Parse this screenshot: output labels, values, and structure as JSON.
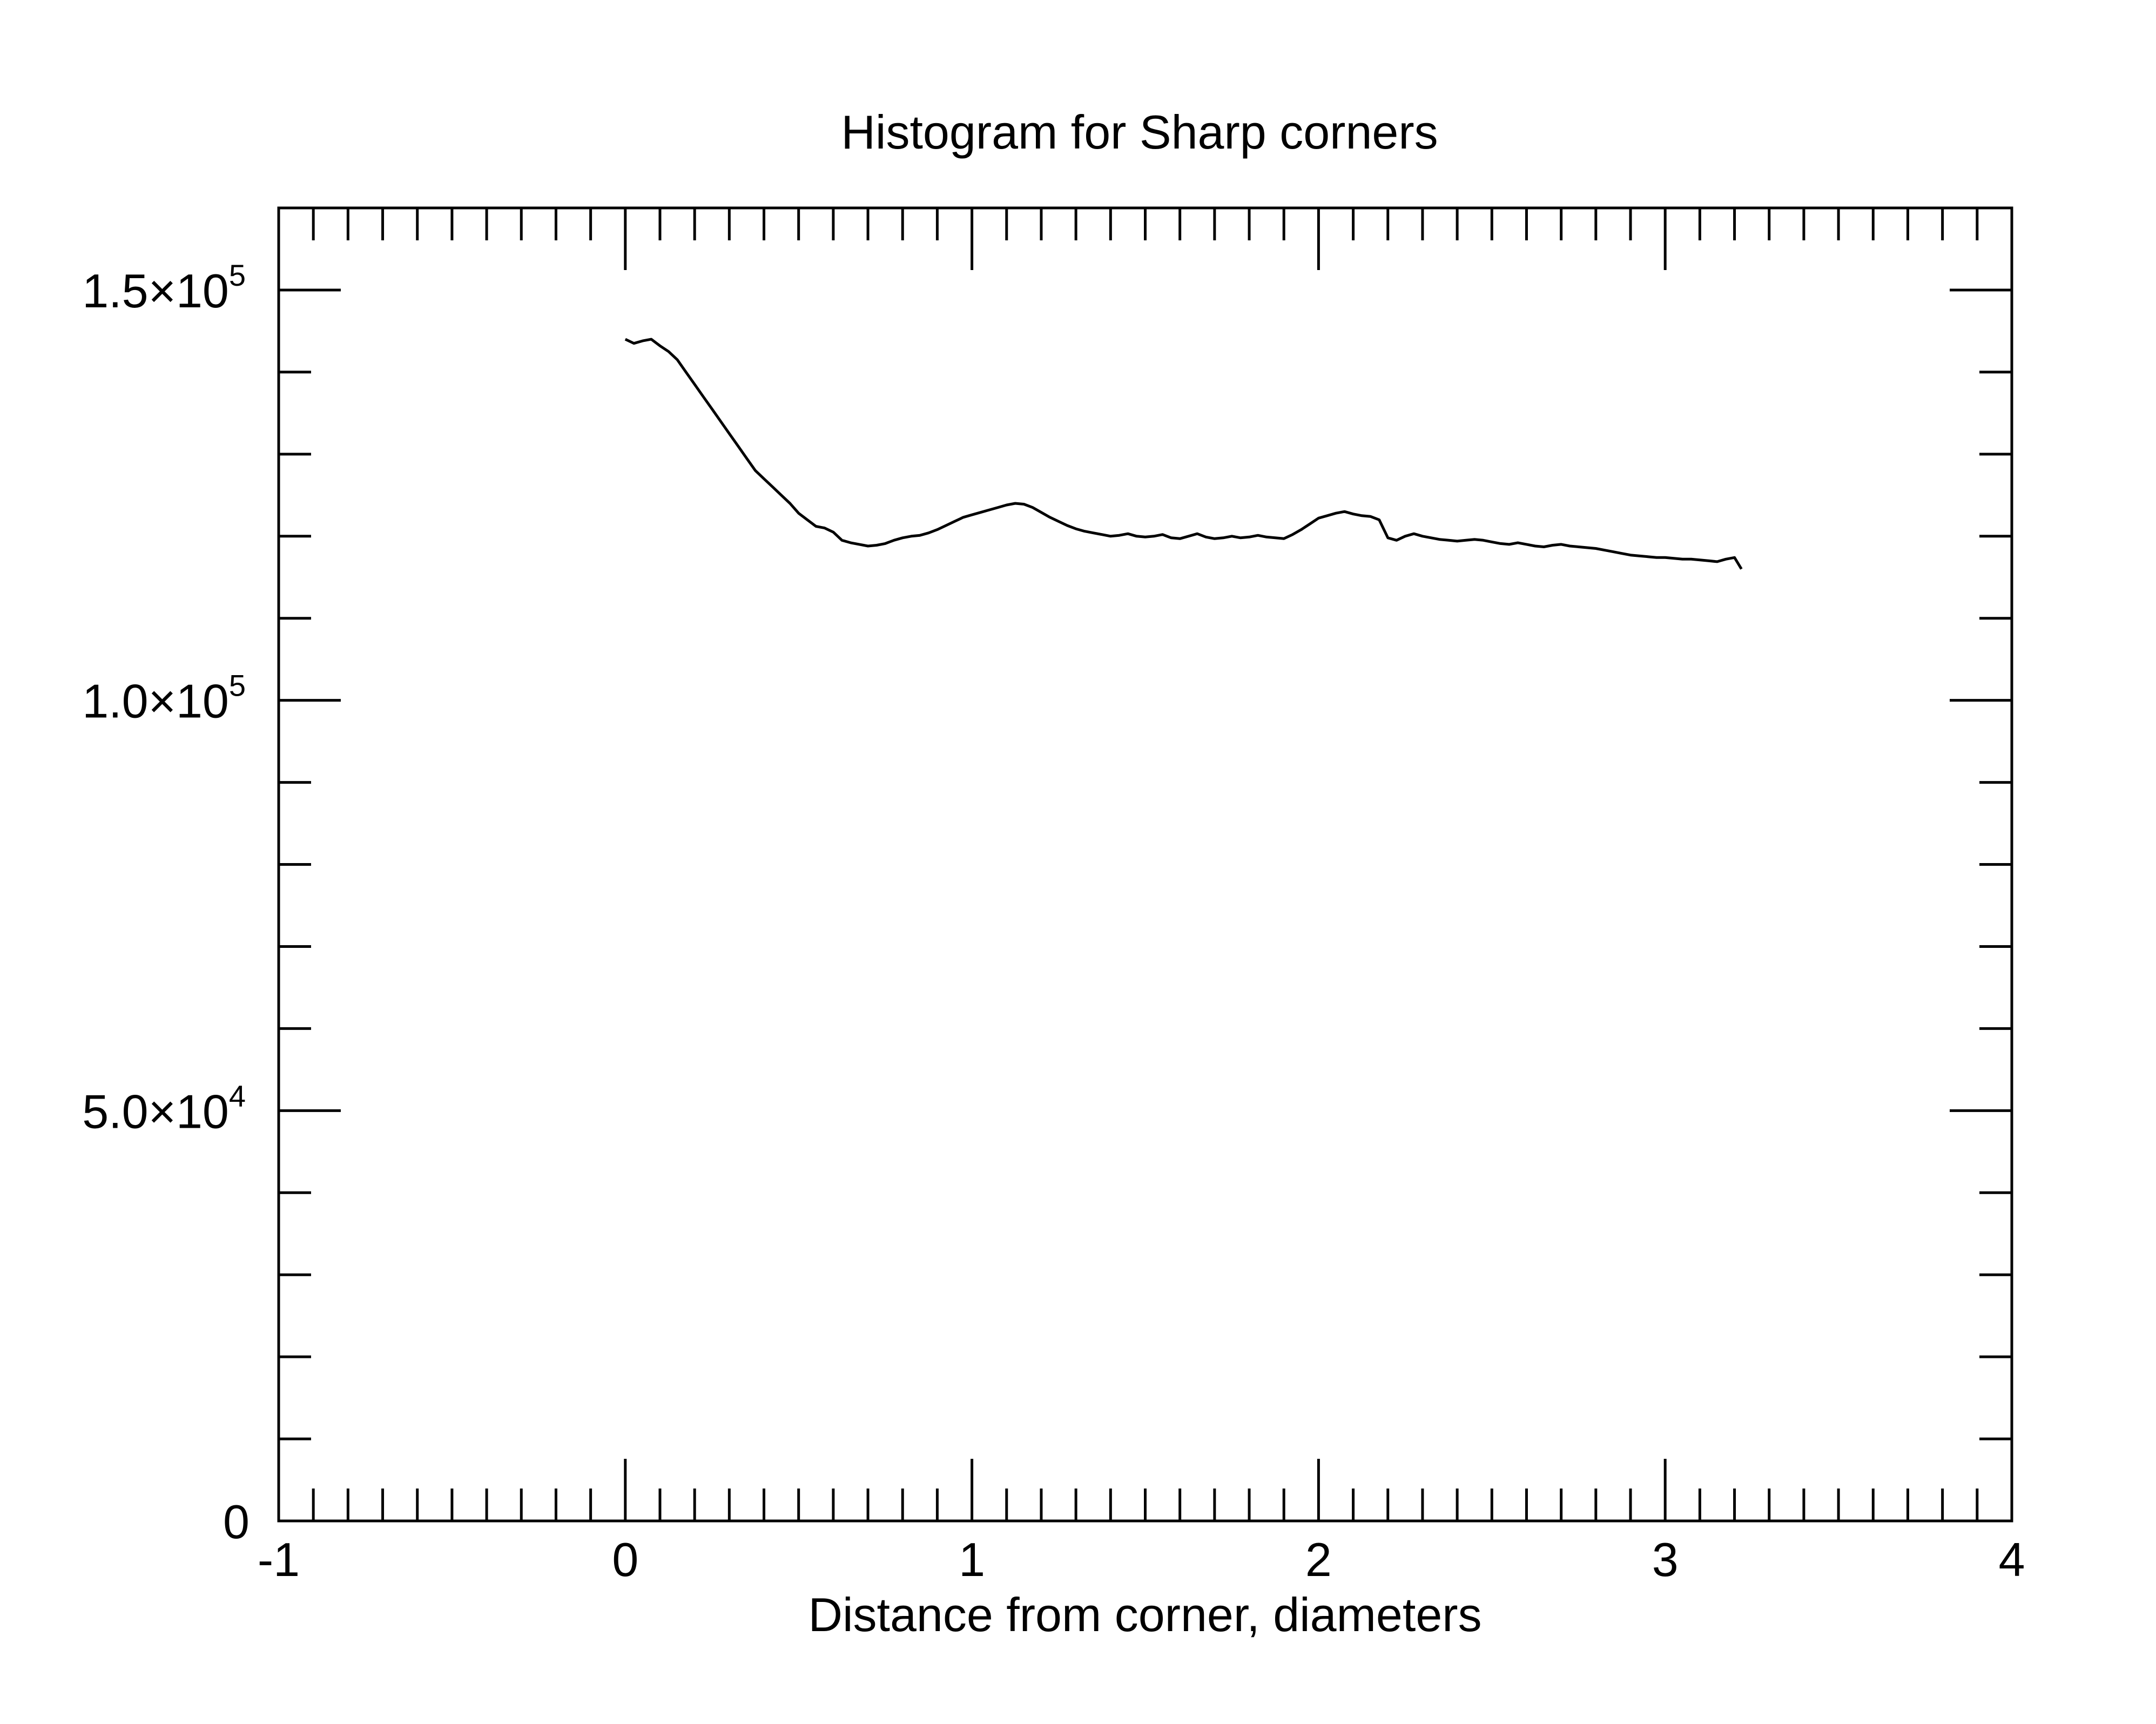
{
  "chart_data": {
    "type": "line",
    "title": "Histogram for Sharp corners",
    "xlabel": "Distance from corner, diameters",
    "ylabel": "",
    "xlim": [
      -1,
      4
    ],
    "ylim": [
      0,
      160000
    ],
    "x_major_ticks": [
      -1,
      0,
      1,
      2,
      3,
      4
    ],
    "x_tick_labels": [
      "-1",
      "0",
      "1",
      "2",
      "3",
      "4"
    ],
    "x_minor_step": 0.1,
    "y_major_ticks": [
      {
        "value": 0,
        "mantissa": "0",
        "exponent": ""
      },
      {
        "value": 50000,
        "mantissa": "5.0×10",
        "exponent": "4"
      },
      {
        "value": 100000,
        "mantissa": "1.0×10",
        "exponent": "5"
      },
      {
        "value": 150000,
        "mantissa": "1.5×10",
        "exponent": "5"
      }
    ],
    "y_minor_step": 10000,
    "grid": false,
    "legend": "none",
    "line_color": "#000000",
    "series": [
      {
        "x": [
          0,
          0.025,
          0.05,
          0.075,
          0.1,
          0.125,
          0.15,
          0.175,
          0.2,
          0.225,
          0.25,
          0.275,
          0.3,
          0.325,
          0.35,
          0.375,
          0.4,
          0.425,
          0.45,
          0.475,
          0.5,
          0.525,
          0.55,
          0.575,
          0.6,
          0.625,
          0.65,
          0.675,
          0.7,
          0.725,
          0.75,
          0.775,
          0.8,
          0.825,
          0.85,
          0.875,
          0.9,
          0.925,
          0.95,
          0.975,
          1.0,
          1.025,
          1.05,
          1.075,
          1.1,
          1.125,
          1.15,
          1.175,
          1.2,
          1.225,
          1.25,
          1.275,
          1.3,
          1.325,
          1.35,
          1.375,
          1.4,
          1.425,
          1.45,
          1.475,
          1.5,
          1.525,
          1.55,
          1.575,
          1.6,
          1.625,
          1.65,
          1.675,
          1.7,
          1.725,
          1.75,
          1.775,
          1.8,
          1.825,
          1.85,
          1.875,
          1.9,
          1.925,
          1.95,
          1.975,
          2.0,
          2.025,
          2.05,
          2.075,
          2.1,
          2.125,
          2.15,
          2.175,
          2.2,
          2.225,
          2.25,
          2.275,
          2.3,
          2.325,
          2.35,
          2.375,
          2.4,
          2.425,
          2.45,
          2.475,
          2.5,
          2.525,
          2.55,
          2.575,
          2.6,
          2.625,
          2.65,
          2.675,
          2.7,
          2.725,
          2.75,
          2.775,
          2.8,
          2.825,
          2.85,
          2.875,
          2.9,
          2.925,
          2.95,
          2.975,
          3.0,
          3.025,
          3.05,
          3.075,
          3.1,
          3.125,
          3.15,
          3.175,
          3.2,
          3.22
        ],
        "y": [
          144000,
          143500,
          143800,
          144000,
          143200,
          142500,
          141500,
          140000,
          138500,
          137000,
          135500,
          134000,
          132500,
          131000,
          129500,
          128000,
          127000,
          126000,
          125000,
          124000,
          122800,
          122000,
          121200,
          121000,
          120500,
          119500,
          119200,
          119000,
          118800,
          118900,
          119100,
          119500,
          119800,
          120000,
          120100,
          120400,
          120800,
          121300,
          121800,
          122300,
          122600,
          122900,
          123200,
          123500,
          123800,
          124000,
          123900,
          123500,
          122900,
          122300,
          121800,
          121300,
          120900,
          120600,
          120400,
          120200,
          120000,
          120100,
          120300,
          120000,
          119900,
          120000,
          120200,
          119800,
          119700,
          120000,
          120300,
          119900,
          119700,
          119800,
          120000,
          119800,
          119900,
          120100,
          119900,
          119800,
          119700,
          120200,
          120800,
          121500,
          122200,
          122500,
          122800,
          123000,
          122700,
          122500,
          122400,
          122000,
          119800,
          119500,
          120000,
          120300,
          120000,
          119800,
          119600,
          119500,
          119400,
          119500,
          119600,
          119500,
          119300,
          119100,
          119000,
          119200,
          119000,
          118800,
          118700,
          118900,
          119000,
          118800,
          118700,
          118600,
          118500,
          118300,
          118100,
          117900,
          117700,
          117600,
          117500,
          117400,
          117400,
          117300,
          117200,
          117200,
          117100,
          117000,
          116900,
          117200,
          117400,
          116000
        ]
      }
    ]
  }
}
